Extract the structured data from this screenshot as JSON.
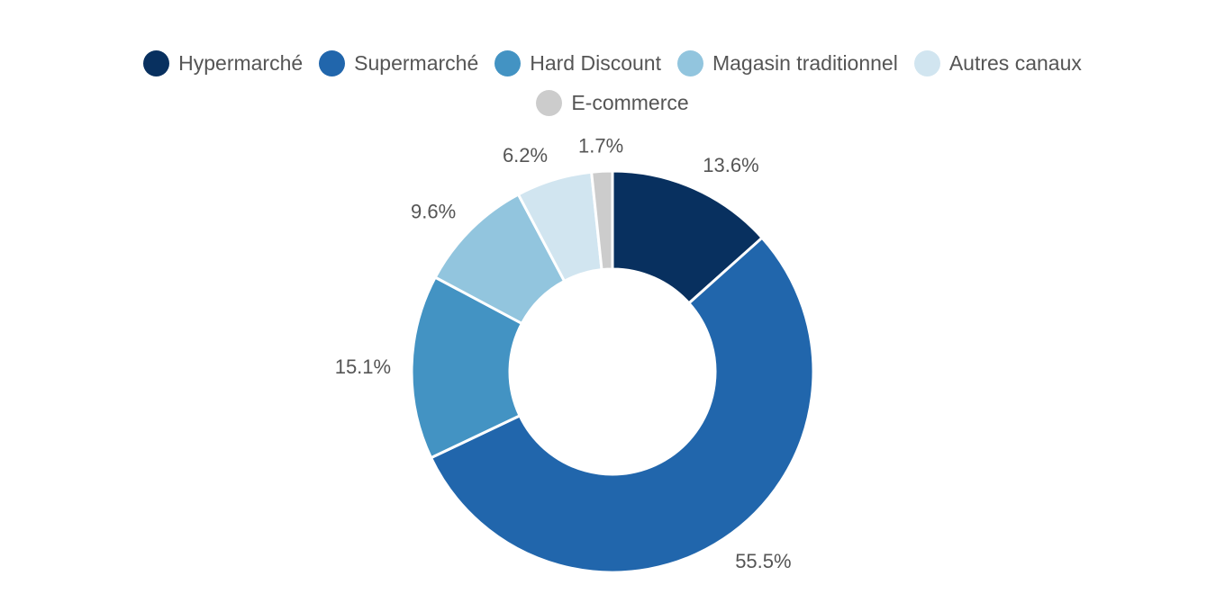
{
  "chart_data": {
    "type": "pie",
    "title": "",
    "categories": [
      "Hypermarché",
      "Supermarché",
      "Hard Discount",
      "Magasin traditionnel",
      "Autres canaux",
      "E-commerce"
    ],
    "values": [
      13.6,
      55.5,
      15.1,
      9.6,
      6.2,
      1.7
    ],
    "value_labels": [
      "13.6%",
      "55.5%",
      "15.1%",
      "9.6%",
      "6.2%",
      "1.7%"
    ],
    "colors": [
      "#08305f",
      "#2166ac",
      "#4393c3",
      "#92c5de",
      "#d1e5f0",
      "#cccccc"
    ],
    "donut": true,
    "legend_position": "top-center"
  }
}
